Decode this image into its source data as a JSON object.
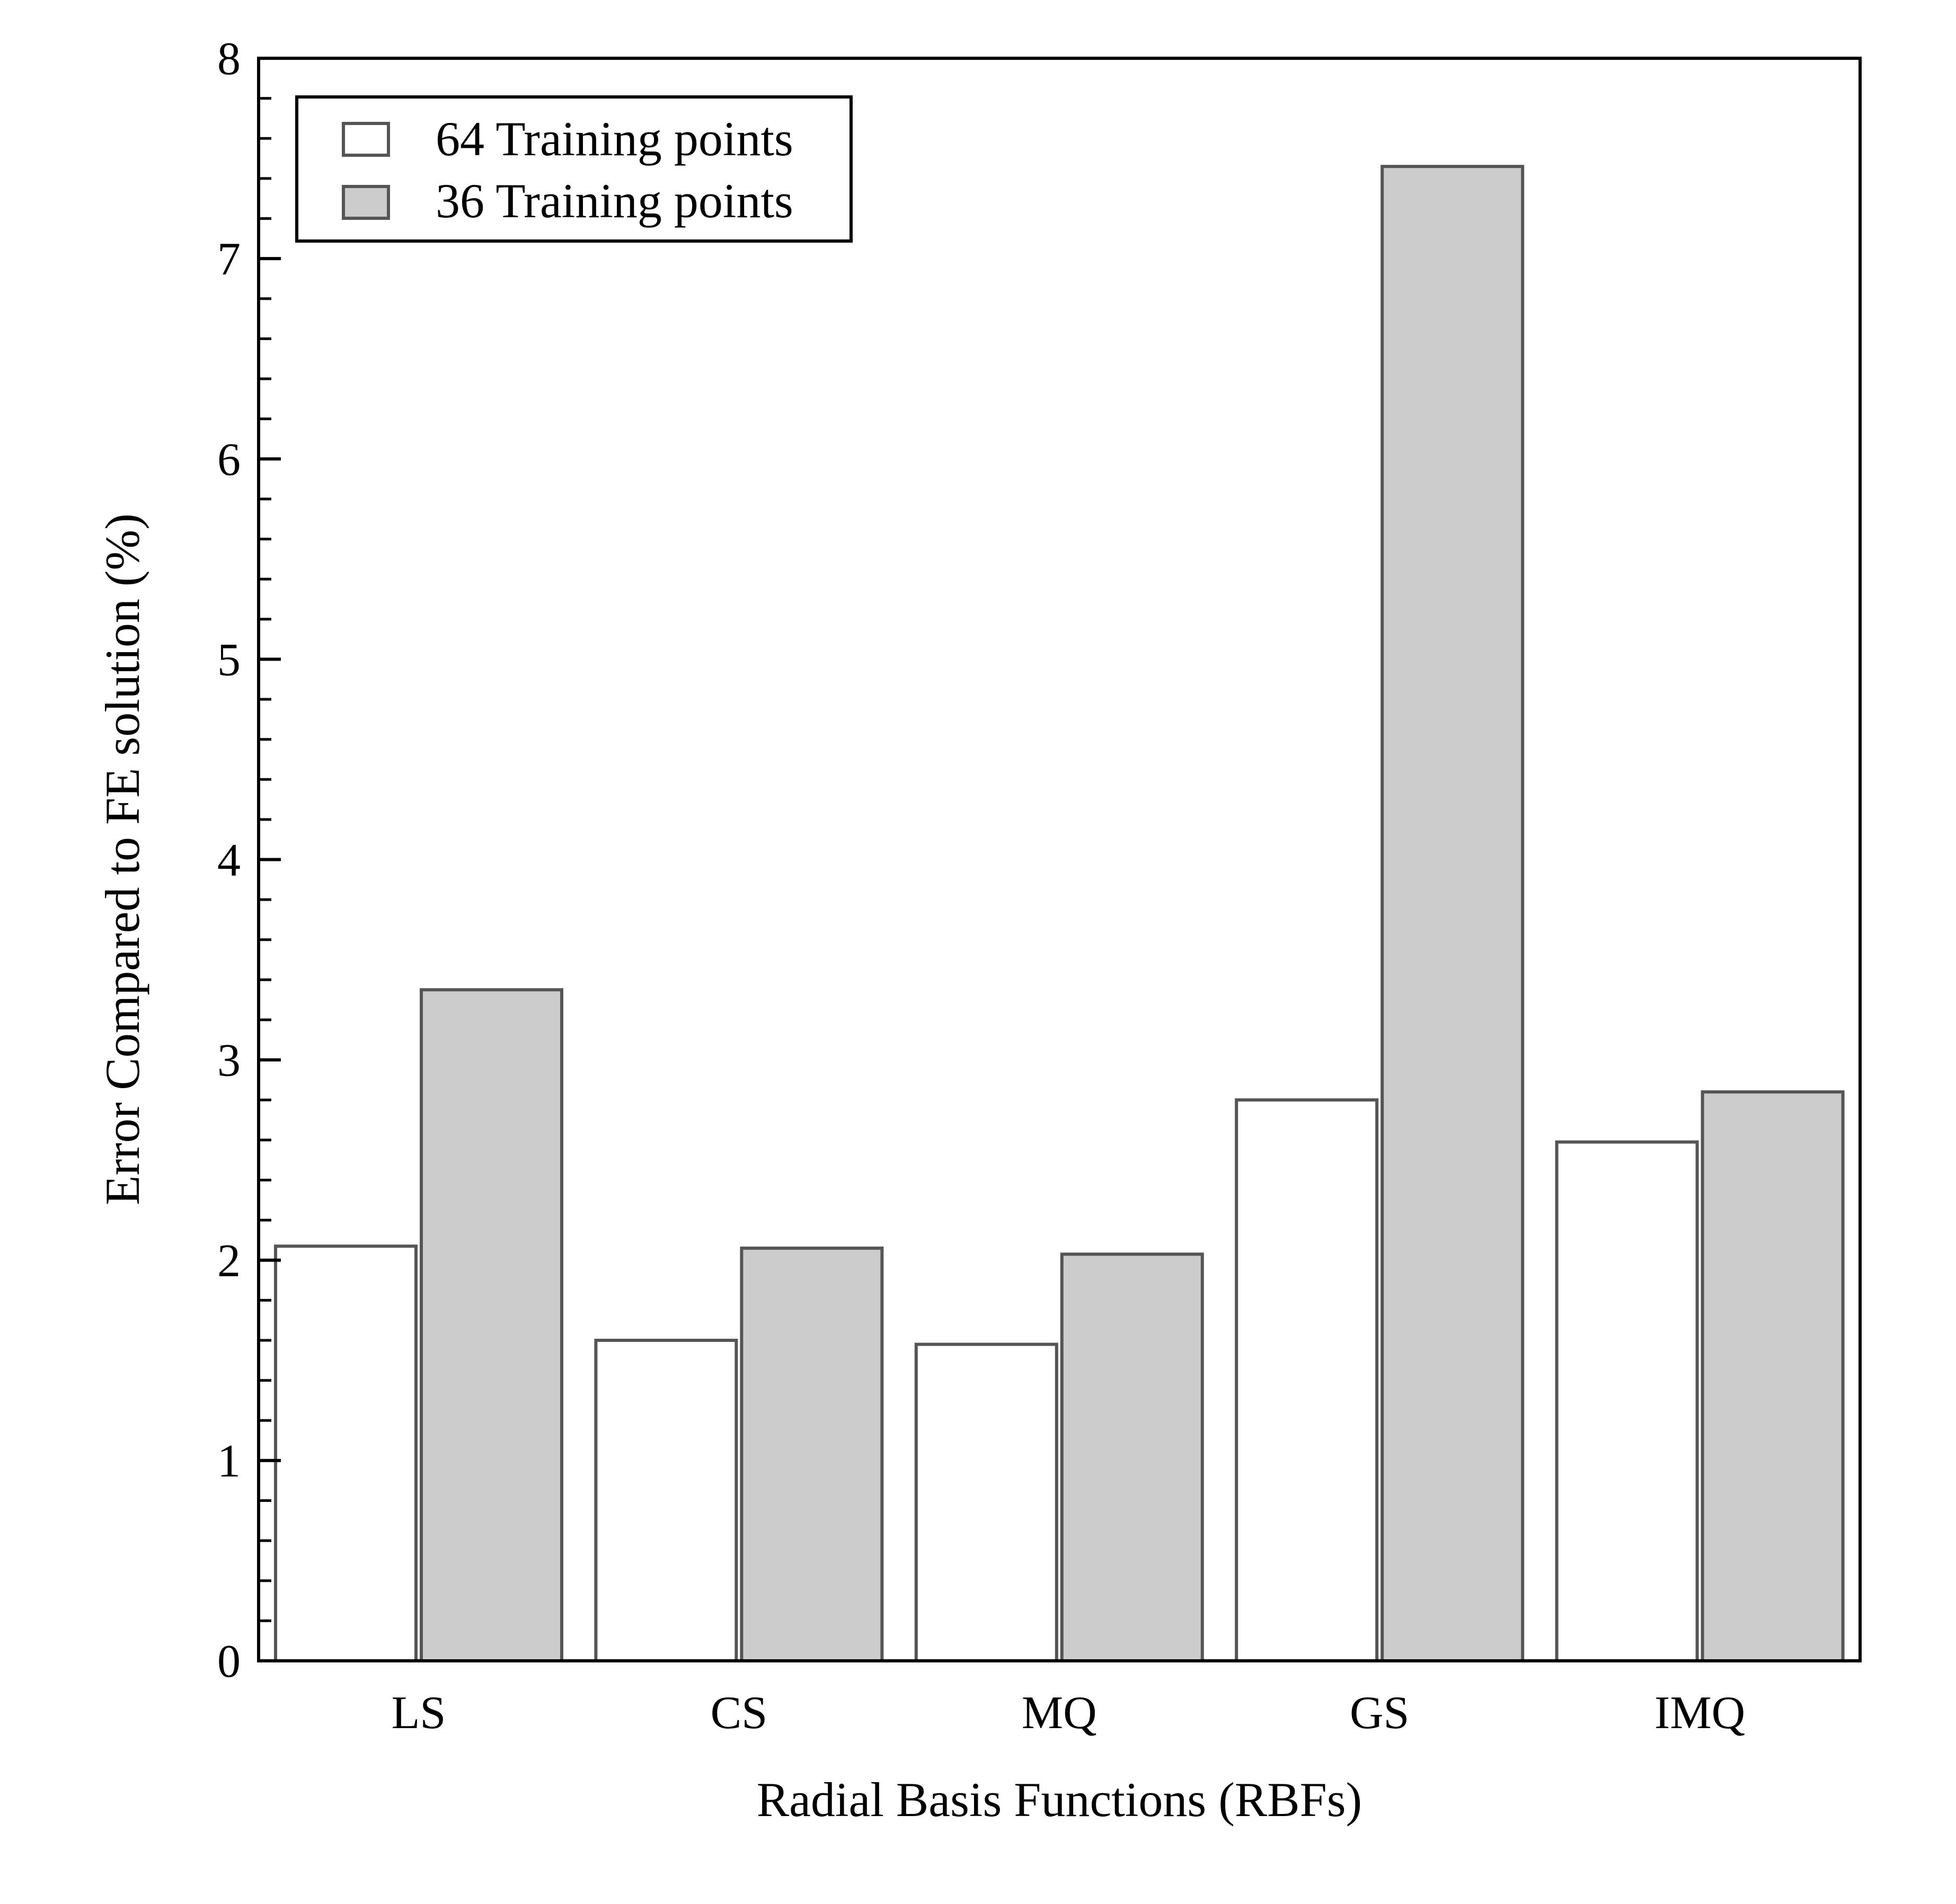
{
  "chart_data": {
    "type": "bar",
    "title": "",
    "xlabel": "Radial Basis Functions (RBFs)",
    "ylabel": "Error Compared to FE solution (%)",
    "categories": [
      "LS",
      "CS",
      "MQ",
      "GS",
      "IMQ"
    ],
    "series": [
      {
        "name": "64 Training points",
        "values": [
          2.07,
          1.6,
          1.58,
          2.8,
          2.59
        ],
        "color": "#ffffff"
      },
      {
        "name": "36 Training points",
        "values": [
          3.35,
          2.06,
          2.03,
          7.46,
          2.84
        ],
        "color": "#cccccc"
      }
    ],
    "ylim": [
      0,
      8
    ],
    "yticks": [
      0,
      1,
      2,
      3,
      4,
      5,
      6,
      7,
      8
    ],
    "grid": false,
    "legend_position": "top-left",
    "bar_edge_color": "#555555"
  }
}
